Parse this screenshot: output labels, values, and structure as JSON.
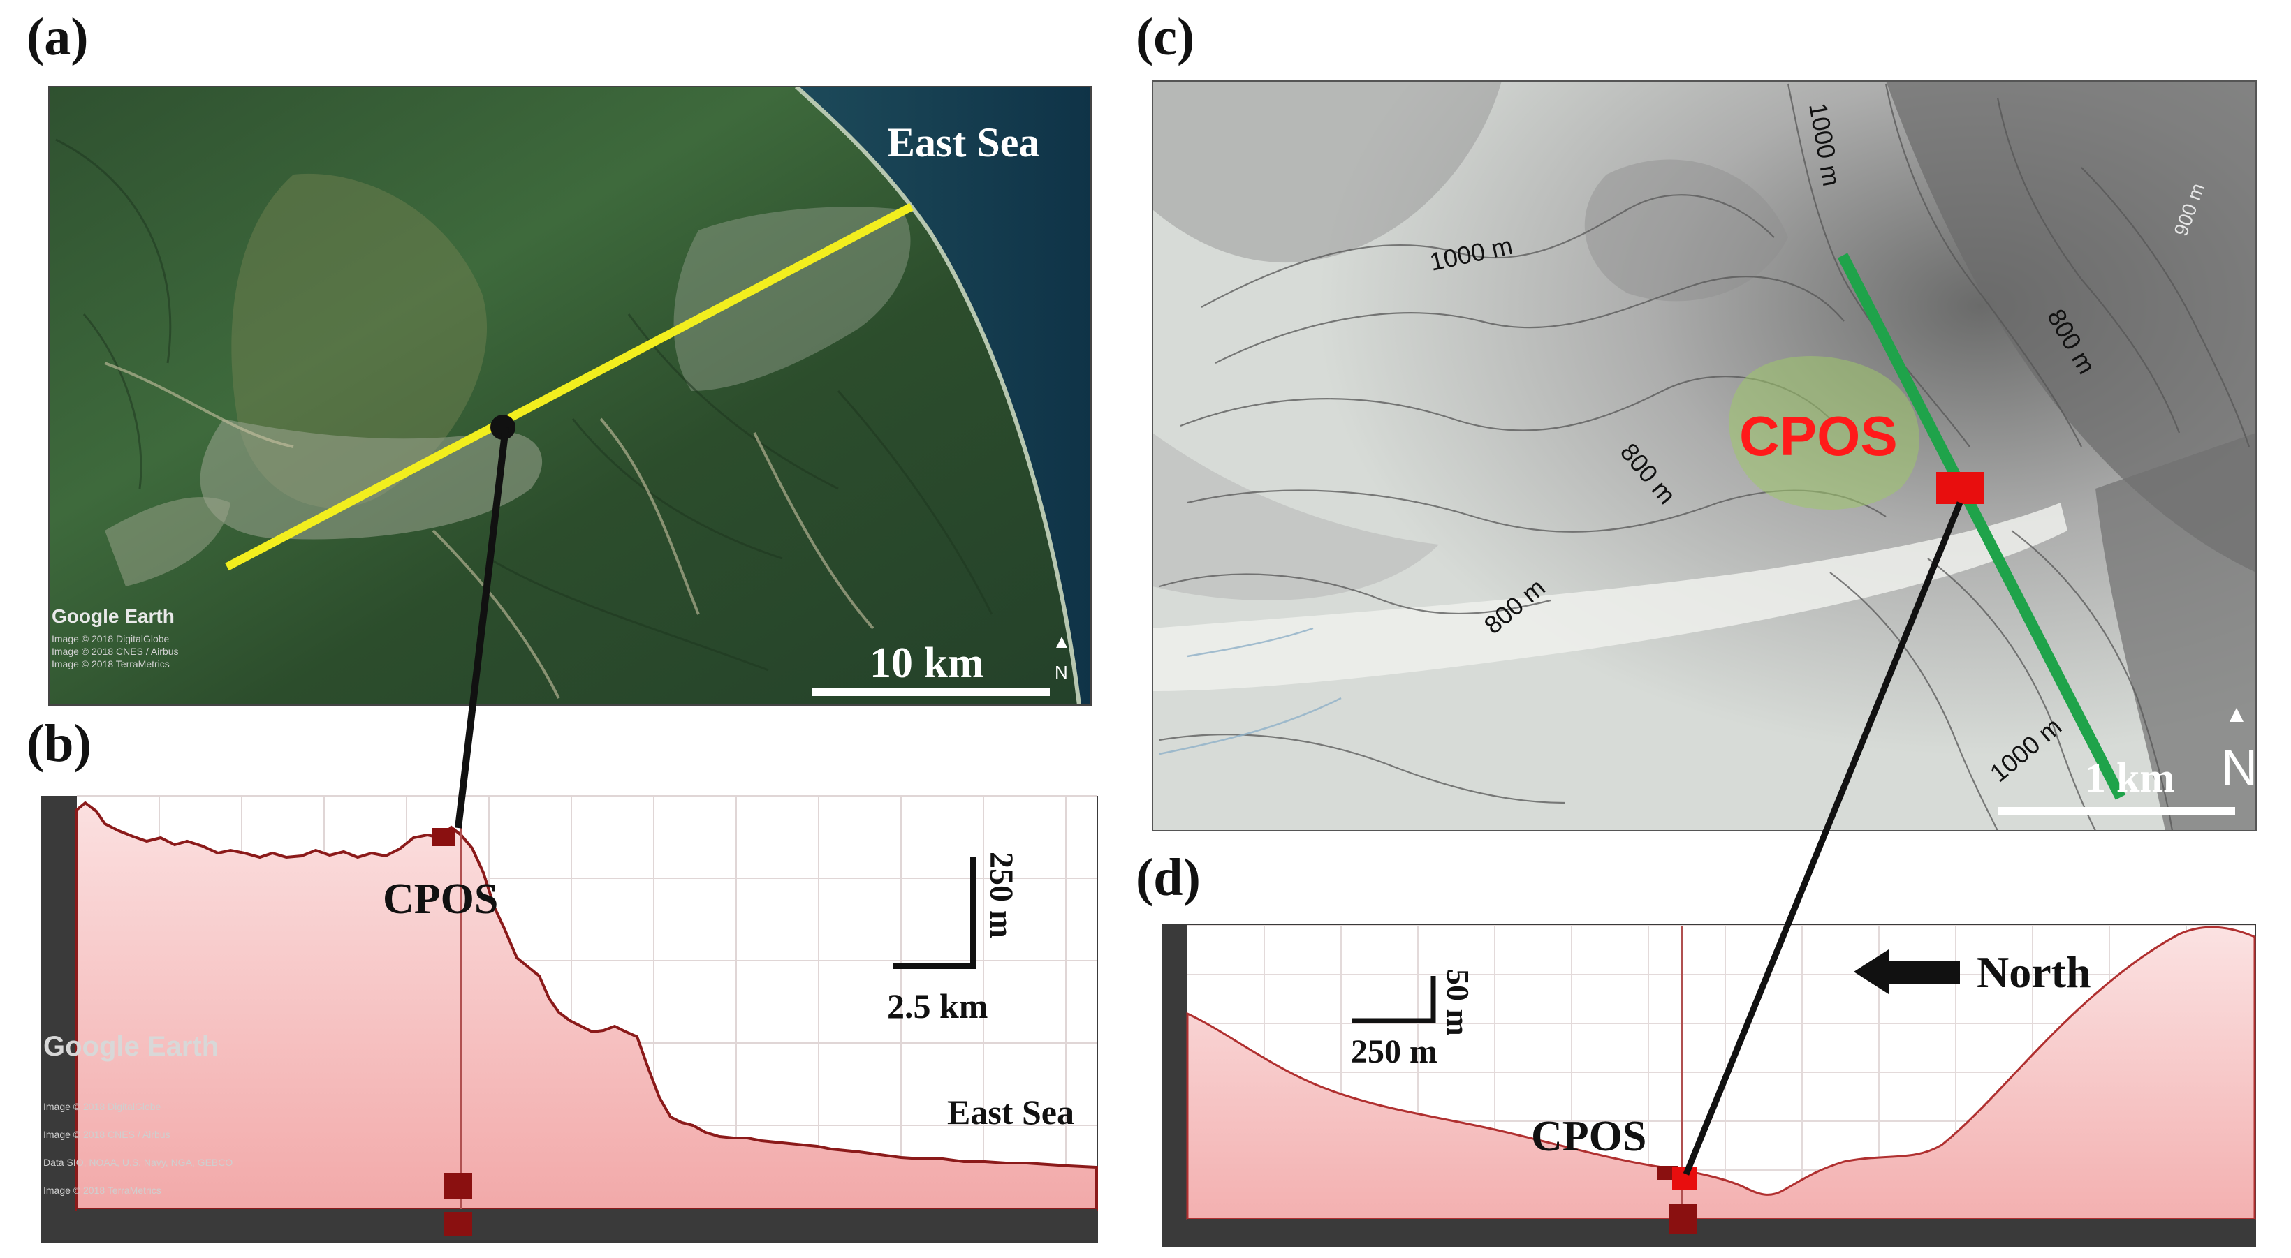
{
  "panels": {
    "a": {
      "label": "(a)",
      "sea_label": "East Sea",
      "scale_label": "10 km",
      "north_label": "N",
      "watermark": "Google Earth",
      "credits": [
        "Image © 2018 DigitalGlobe",
        "Image © 2018 CNES / Airbus",
        "Image © 2018 TerraMetrics"
      ]
    },
    "b": {
      "label": "(b)",
      "cpos_label": "CPOS",
      "sea_label": "East Sea",
      "scale_v_label": "250 m",
      "scale_h_label": "2.5 km",
      "watermark": "Google Earth",
      "credits": [
        "Image © 2018 DigitalGlobe",
        "Image © 2018 CNES / Airbus",
        "Data SIO, NOAA, U.S. Navy, NGA, GEBCO",
        "Image © 2018 TerraMetrics"
      ]
    },
    "c": {
      "label": "(c)",
      "cpos_label": "CPOS",
      "scale_label": "1 km",
      "north_label": "N",
      "contour_labels": [
        "1000 m",
        "1000 m",
        "800 m",
        "800 m",
        "800 m",
        "1000 m",
        "900 m"
      ]
    },
    "d": {
      "label": "(d)",
      "cpos_label": "CPOS",
      "north_label": "North",
      "scale_v_label": "50 m",
      "scale_h_label": "250 m"
    }
  },
  "colors": {
    "transect_a": "#f2ee1e",
    "transect_c": "#1fa34a",
    "marker": "#e80e0e",
    "cpos_c": "#ff1a1a",
    "profile_line": "#8b1a1a",
    "profile_fill": "#f6c6c6"
  }
}
